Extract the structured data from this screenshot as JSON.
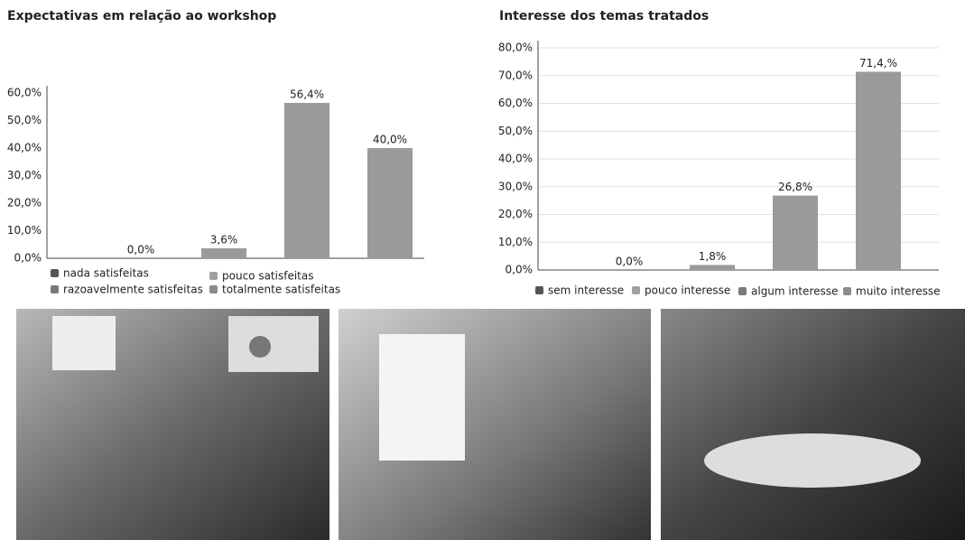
{
  "chart_data": [
    {
      "type": "bar",
      "title": "Expectativas em relação ao workshop",
      "categories": [
        "nada satisfeitas",
        "pouco satisfeitas",
        "razoavelmente satisfeitas",
        "totalmente satisfeitas"
      ],
      "values": [
        0,
        3.6,
        56.4,
        40
      ],
      "value_labels": [
        "0,0%",
        "3,6%",
        "56,4%",
        "40,0%"
      ],
      "colors": [
        "#555555",
        "#a0a0a0",
        "#7a7a7a",
        "#8c8c8c"
      ],
      "bar_color": "#9a9a9a",
      "ylim": [
        0,
        60
      ],
      "yticks": [
        {
          "value": 0,
          "label": "0,0%"
        },
        {
          "value": 10,
          "label": "10,0%"
        },
        {
          "value": 20,
          "label": "20,0%"
        },
        {
          "value": 30,
          "label": "30,0%"
        },
        {
          "value": 40,
          "label": "40,0%"
        },
        {
          "value": 50,
          "label": "50,0%"
        },
        {
          "value": 60,
          "label": "60,0%"
        }
      ],
      "grid": false
    },
    {
      "type": "bar",
      "title": "Interesse dos temas tratados",
      "categories": [
        "sem interesse",
        "pouco interesse",
        "algum interesse",
        "muito interesse"
      ],
      "values": [
        0,
        1.8,
        26.8,
        71.4
      ],
      "value_labels": [
        "0,0%",
        "1,8%",
        "26,8%",
        "71,4,%"
      ],
      "colors": [
        "#555555",
        "#a0a0a0",
        "#7a7a7a",
        "#8c8c8c"
      ],
      "bar_color": "#9a9a9a",
      "ylim": [
        0,
        80
      ],
      "yticks": [
        {
          "value": 0,
          "label": "0,0%"
        },
        {
          "value": 10,
          "label": "10,0%"
        },
        {
          "value": 20,
          "label": "20,0%"
        },
        {
          "value": 30,
          "label": "30,0%"
        },
        {
          "value": 40,
          "label": "40,0%"
        },
        {
          "value": 50,
          "label": "50,0%"
        },
        {
          "value": 60,
          "label": "60,0%"
        },
        {
          "value": 70,
          "label": "70,0%"
        },
        {
          "value": 80,
          "label": "80,0%"
        }
      ],
      "grid": true
    }
  ]
}
